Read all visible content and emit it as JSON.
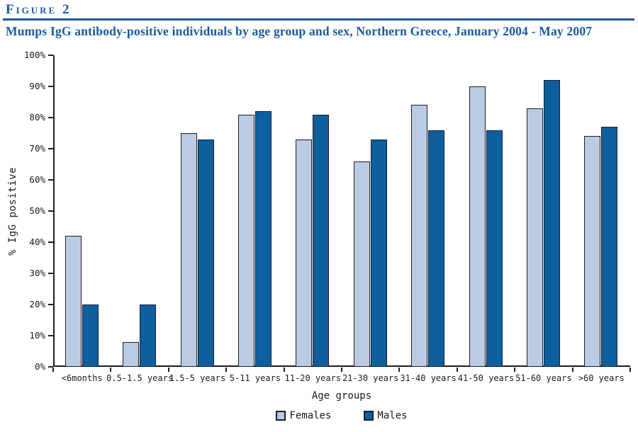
{
  "figure_label": "Figure 2",
  "title": "Mumps IgG antibody-positive individuals by age group and sex, Northern Greece, January 2004 - May 2007",
  "accent_color": "#1a5a9c",
  "chart_data": {
    "type": "bar",
    "title": "Mumps IgG antibody-positive individuals by age group and sex, Northern Greece, January 2004 - May 2007",
    "xlabel": "Age groups",
    "ylabel": "% IgG positive",
    "ylim": [
      0,
      100
    ],
    "y_tick_step": 10,
    "y_tick_suffix": "%",
    "grid": false,
    "legend_position": "bottom",
    "categories": [
      "<6months",
      "0.5-1.5 years",
      "1.5-5 years",
      "5-11 years",
      "11-20 years",
      "21-30 years",
      "31-40 years",
      "41-50 years",
      "51-60 years",
      ">60 years"
    ],
    "series": [
      {
        "name": "Females",
        "color": "#b9cce3",
        "values": [
          42,
          8,
          75,
          81,
          73,
          66,
          84,
          90,
          83,
          74
        ]
      },
      {
        "name": "Males",
        "color": "#0e5f9d",
        "values": [
          20,
          20,
          73,
          82,
          81,
          73,
          76,
          76,
          92,
          77
        ]
      }
    ]
  }
}
